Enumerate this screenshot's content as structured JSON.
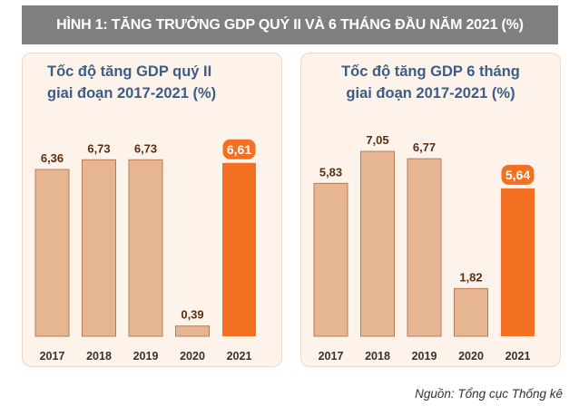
{
  "banner": {
    "title": "HÌNH 1: TĂNG TRƯỞNG GDP QUÝ II VÀ 6 THÁNG ĐẦU NĂM 2021 (%)"
  },
  "source": "Nguồn: Tổng cục Thống kê",
  "colors": {
    "bar_normal": "#e6b591",
    "bar_normal_border": "#b97a58",
    "bar_highlight": "#f36f21",
    "panel_bg": "#fdf3ea",
    "title_color": "#3c5d86",
    "label_color": "#5a2e12"
  },
  "chart_data": [
    {
      "type": "bar",
      "title_lines": [
        "Tốc độ tăng GDP quý II",
        "giai đoạn 2017-2021 (%)"
      ],
      "categories": [
        "2017",
        "2018",
        "2019",
        "2020",
        "2021"
      ],
      "values": [
        6.36,
        6.73,
        6.73,
        0.39,
        6.61
      ],
      "value_labels": [
        "6,36",
        "6,73",
        "6,73",
        "0,39",
        "6,61"
      ],
      "highlight_index": 4,
      "ylim": [
        0,
        7.5
      ],
      "grid": false
    },
    {
      "type": "bar",
      "title_lines": [
        "Tốc độ tăng GDP 6 tháng",
        "giai đoạn 2017-2021 (%)"
      ],
      "categories": [
        "2017",
        "2018",
        "2019",
        "2020",
        "2021"
      ],
      "values": [
        5.83,
        7.05,
        6.77,
        1.82,
        5.64
      ],
      "value_labels": [
        "5,83",
        "7,05",
        "6,77",
        "1,82",
        "5,64"
      ],
      "highlight_index": 4,
      "ylim": [
        0,
        7.5
      ],
      "grid": false
    }
  ]
}
